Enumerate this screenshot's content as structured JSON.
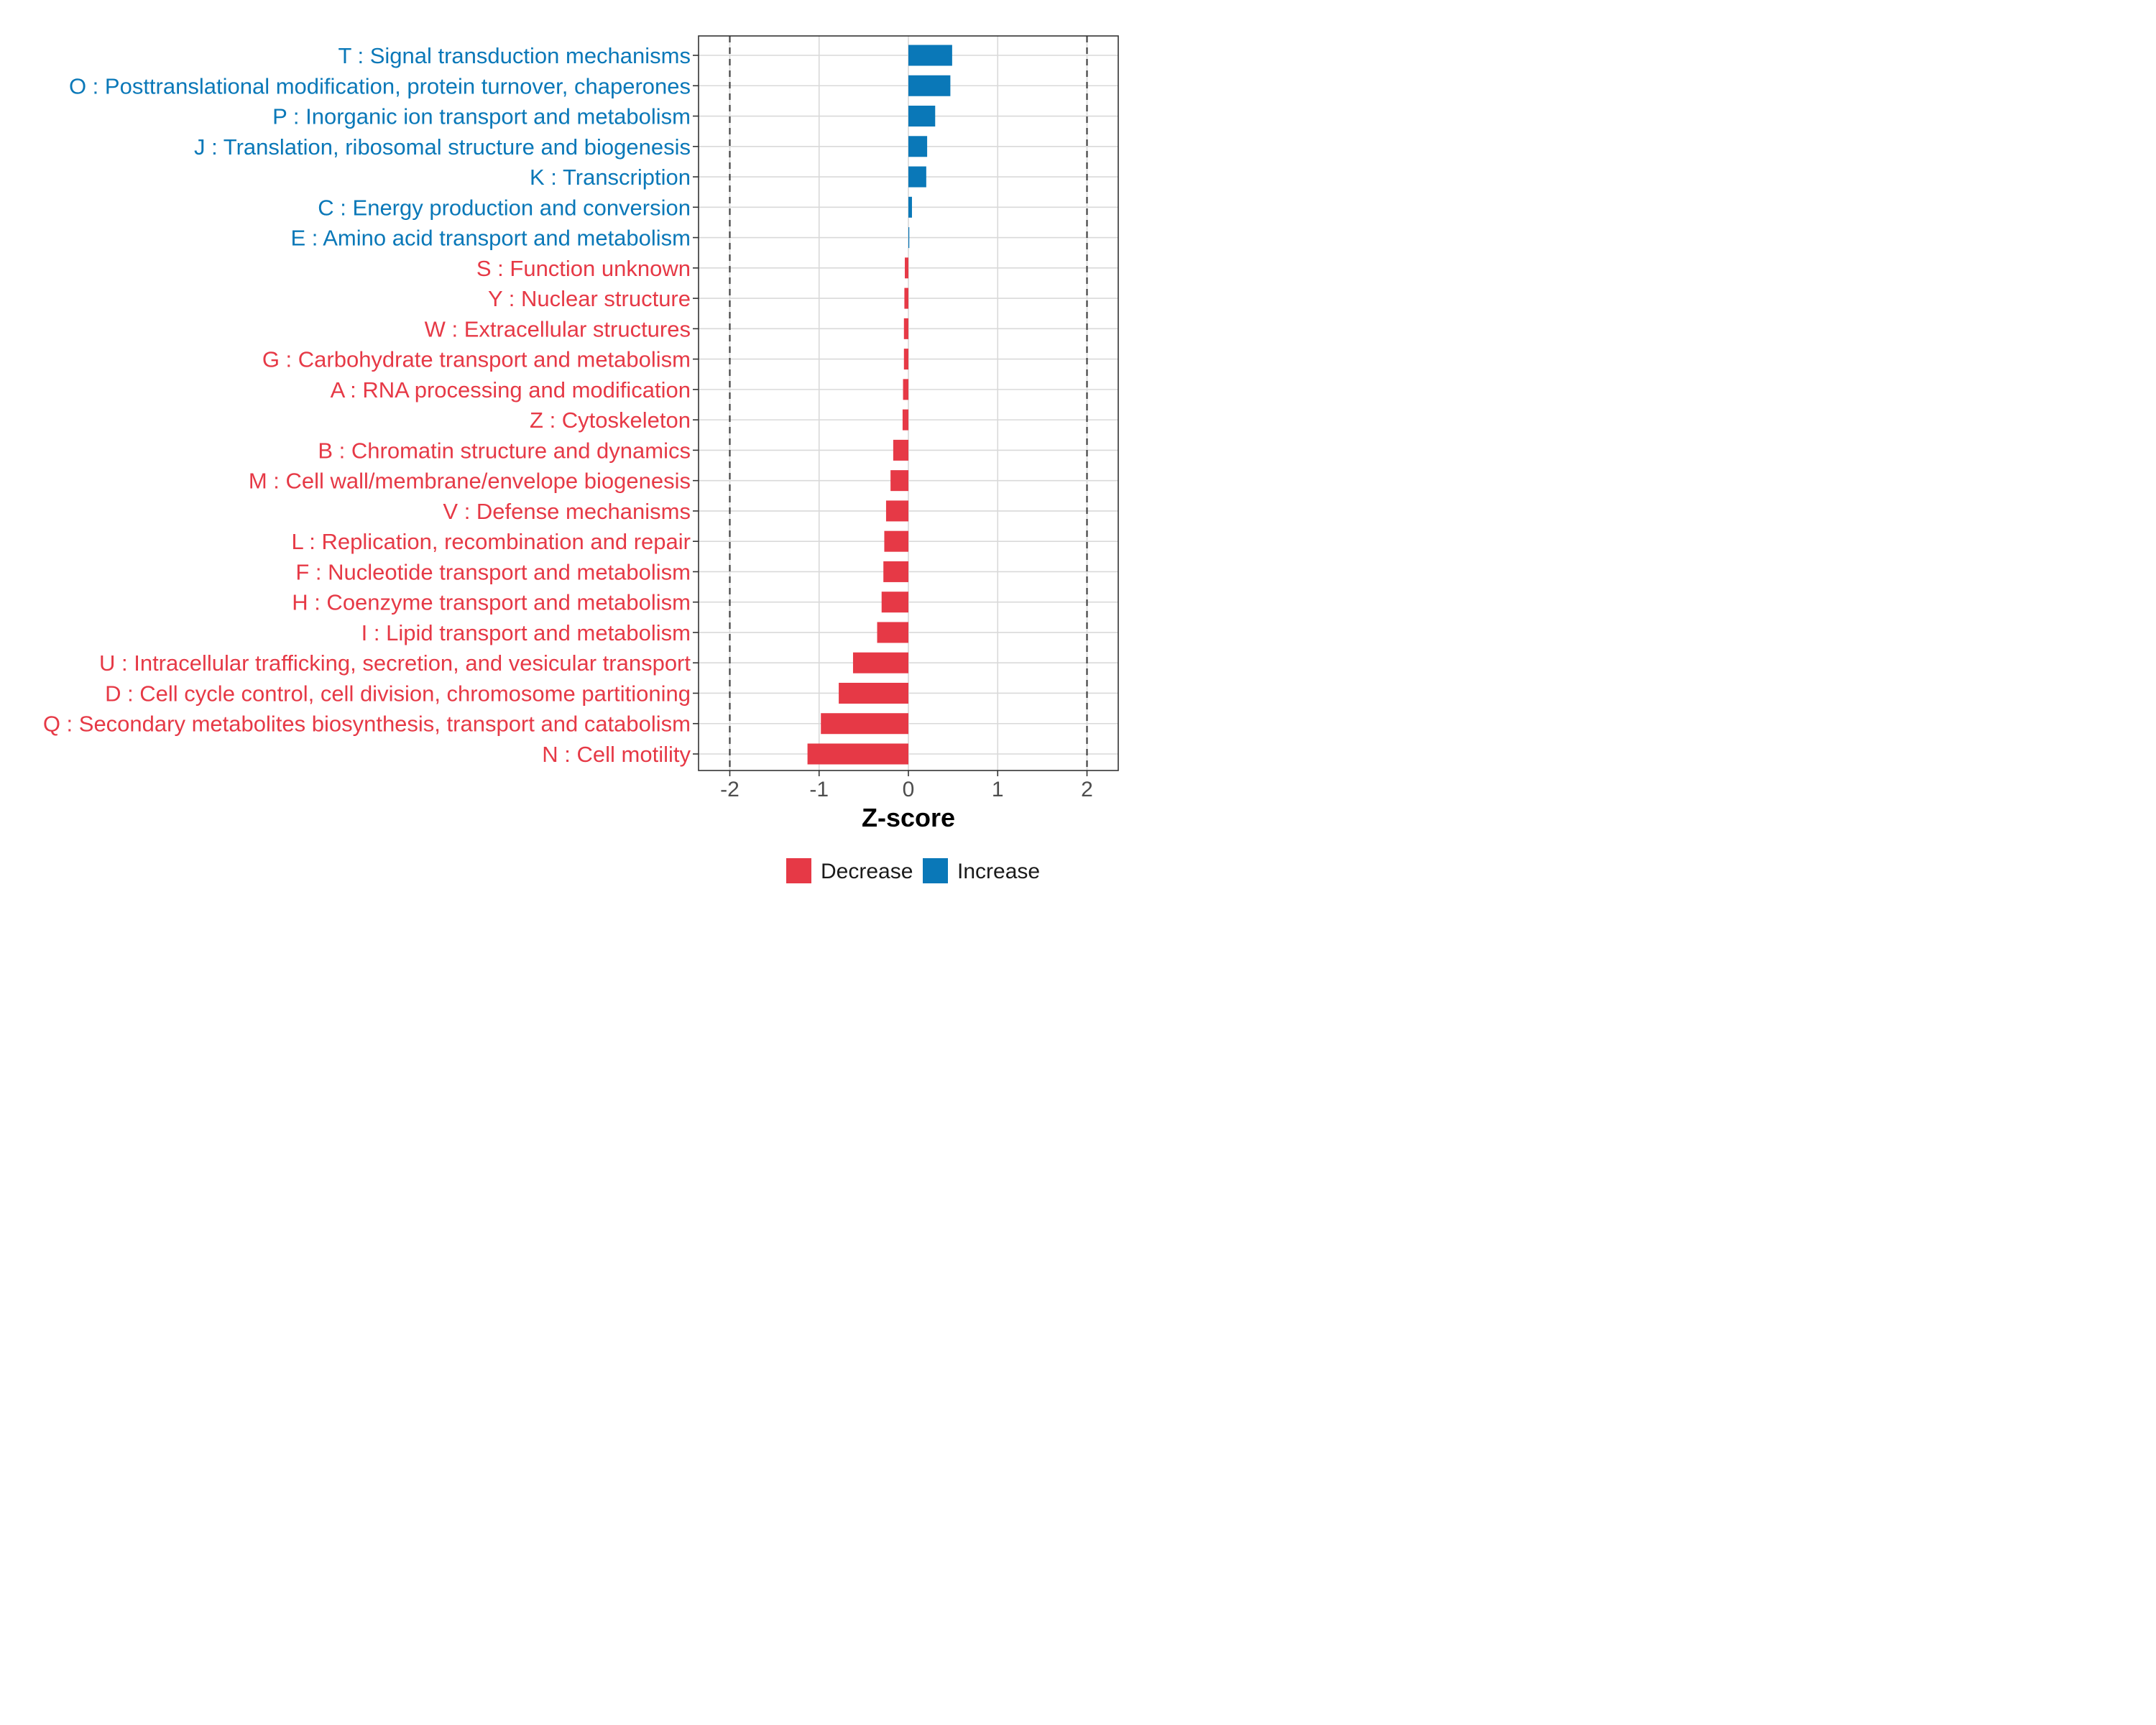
{
  "colors": {
    "increase": "#0A78B8",
    "decrease": "#E63946",
    "grid": "#D9D9D9",
    "refline": "#444444",
    "panel_border": "#333333"
  },
  "chart_data": {
    "type": "bar",
    "orientation": "horizontal",
    "xlabel": "Z-score",
    "xlim": [
      -2.35,
      2.35
    ],
    "xticks": [
      -2,
      -1,
      0,
      1,
      2
    ],
    "xtick_labels": [
      "-2",
      "-1",
      "0",
      "1",
      "2"
    ],
    "reference_lines": [
      -2,
      2
    ],
    "grid": true,
    "legend_position": "bottom",
    "legend": [
      {
        "key": "decrease",
        "label": "Decrease"
      },
      {
        "key": "increase",
        "label": "Increase"
      }
    ],
    "categories": [
      "T : Signal transduction mechanisms",
      "O : Posttranslational modification, protein turnover, chaperones",
      "P : Inorganic ion transport and metabolism",
      "J : Translation, ribosomal structure and biogenesis",
      "K : Transcription",
      "C : Energy production and conversion",
      "E : Amino acid transport and metabolism",
      "S : Function unknown",
      "Y : Nuclear structure",
      "W : Extracellular structures",
      "G : Carbohydrate transport and metabolism",
      "A : RNA processing and modification",
      "Z : Cytoskeleton",
      "B : Chromatin structure and dynamics",
      "M : Cell wall/membrane/envelope biogenesis",
      "V : Defense mechanisms",
      "L : Replication, recombination and repair",
      "F : Nucleotide transport and metabolism",
      "H : Coenzyme transport and metabolism",
      "I : Lipid transport and metabolism",
      "U : Intracellular trafficking, secretion, and vesicular transport",
      "D : Cell cycle control, cell division, chromosome partitioning",
      "Q : Secondary metabolites biosynthesis, transport and catabolism",
      "N : Cell motility"
    ],
    "values": [
      0.49,
      0.47,
      0.3,
      0.21,
      0.2,
      0.04,
      0.01,
      -0.04,
      -0.045,
      -0.05,
      -0.05,
      -0.06,
      -0.065,
      -0.17,
      -0.2,
      -0.25,
      -0.27,
      -0.28,
      -0.3,
      -0.35,
      -0.62,
      -0.78,
      -0.98,
      -1.13
    ],
    "directions": [
      "increase",
      "increase",
      "increase",
      "increase",
      "increase",
      "increase",
      "increase",
      "decrease",
      "decrease",
      "decrease",
      "decrease",
      "decrease",
      "decrease",
      "decrease",
      "decrease",
      "decrease",
      "decrease",
      "decrease",
      "decrease",
      "decrease",
      "decrease",
      "decrease",
      "decrease",
      "decrease"
    ]
  }
}
